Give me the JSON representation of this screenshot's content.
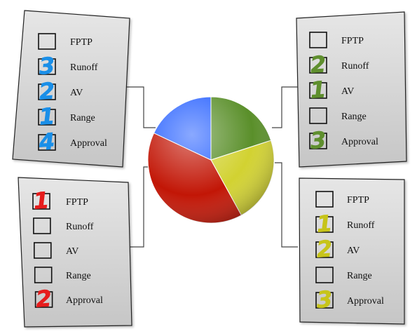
{
  "colors": {
    "card_fill_top": "#e6e6e6",
    "card_fill_bottom": "#c6c6c6",
    "card_border": "#222222",
    "connector": "#444444"
  },
  "chart_data": {
    "type": "pie",
    "slices": [
      {
        "color": "#5a8f2a",
        "value": 0.2
      },
      {
        "color": "#d2d231",
        "value": 0.22
      },
      {
        "color": "#c21606",
        "value": 0.4
      },
      {
        "color": "#2b63ff",
        "value": 0.18
      }
    ]
  },
  "ballots": [
    {
      "id": "top-left",
      "mark_color": "#1a8fe8",
      "options": [
        {
          "label": "FPTP",
          "mark": ""
        },
        {
          "label": "Runoff",
          "mark": "3"
        },
        {
          "label": "AV",
          "mark": "2"
        },
        {
          "label": "Range",
          "mark": "1"
        },
        {
          "label": "Approval",
          "mark": "4"
        }
      ]
    },
    {
      "id": "top-right",
      "mark_color": "#5f8f2e",
      "options": [
        {
          "label": "FPTP",
          "mark": ""
        },
        {
          "label": "Runoff",
          "mark": "2"
        },
        {
          "label": "AV",
          "mark": "1"
        },
        {
          "label": "Range",
          "mark": ""
        },
        {
          "label": "Approval",
          "mark": "3"
        }
      ]
    },
    {
      "id": "bottom-left",
      "mark_color": "#e61c1c",
      "options": [
        {
          "label": "FPTP",
          "mark": "1"
        },
        {
          "label": "Runoff",
          "mark": ""
        },
        {
          "label": "AV",
          "mark": ""
        },
        {
          "label": "Range",
          "mark": ""
        },
        {
          "label": "Approval",
          "mark": "2"
        }
      ]
    },
    {
      "id": "bottom-right",
      "mark_color": "#c7c41a",
      "options": [
        {
          "label": "FPTP",
          "mark": ""
        },
        {
          "label": "Runoff",
          "mark": "1"
        },
        {
          "label": "AV",
          "mark": "2"
        },
        {
          "label": "Range",
          "mark": ""
        },
        {
          "label": "Approval",
          "mark": "3"
        }
      ]
    }
  ]
}
